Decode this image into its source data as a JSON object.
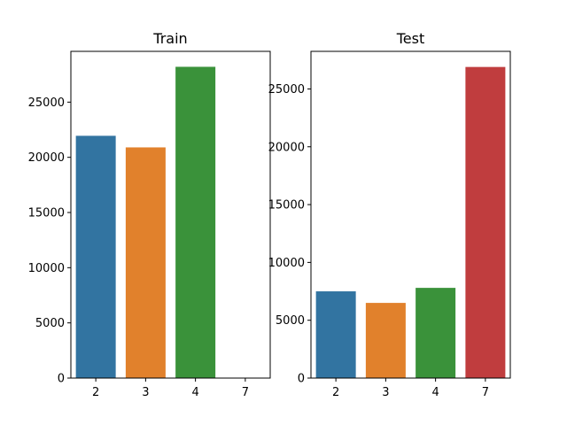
{
  "chart_data": [
    {
      "type": "bar",
      "title": "Train",
      "categories": [
        "2",
        "3",
        "4",
        "7"
      ],
      "values": [
        21950,
        20900,
        28200,
        0
      ],
      "colors": [
        "#3274a1",
        "#e1812c",
        "#3a923a",
        "#c03d3e"
      ],
      "xlabel": "",
      "ylabel": "",
      "ylim": [
        0,
        29600
      ],
      "yticks": [
        0,
        5000,
        10000,
        15000,
        20000,
        25000
      ],
      "grid": false
    },
    {
      "type": "bar",
      "title": "Test",
      "categories": [
        "2",
        "3",
        "4",
        "7"
      ],
      "values": [
        7500,
        6500,
        7800,
        26900
      ],
      "colors": [
        "#3274a1",
        "#e1812c",
        "#3a923a",
        "#c03d3e"
      ],
      "xlabel": "",
      "ylabel": "",
      "ylim": [
        0,
        28250
      ],
      "yticks": [
        0,
        5000,
        10000,
        15000,
        20000,
        25000
      ],
      "grid": false
    }
  ]
}
